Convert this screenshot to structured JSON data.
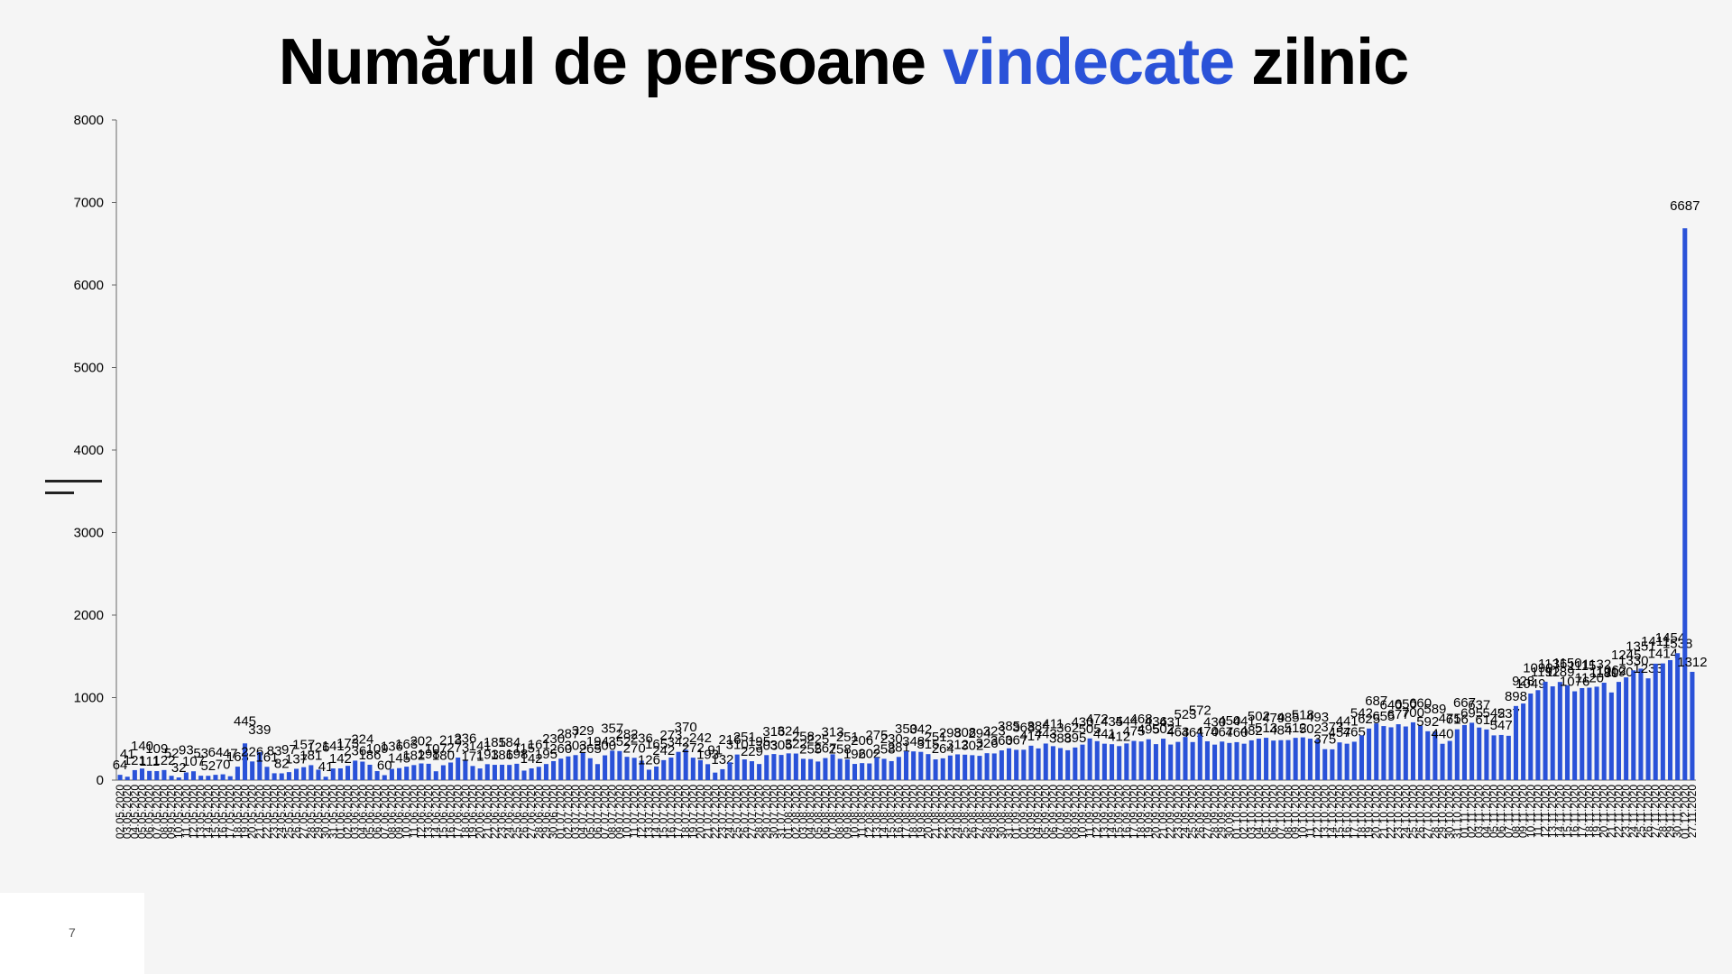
{
  "title": {
    "part1": "Numărul de persoane ",
    "highlight": "vindecate",
    "part2": " zilnic"
  },
  "page_number": "7",
  "colors": {
    "bar": "#2a52d8",
    "title_accent": "#2a52d8",
    "title": "#000000"
  },
  "chart_data": {
    "type": "bar",
    "title": "Numărul de persoane vindecate zilnic",
    "xlabel": "",
    "ylabel": "",
    "ylim": [
      0,
      8000
    ],
    "yticks": [
      0,
      1000,
      2000,
      3000,
      4000,
      5000,
      6000,
      7000,
      8000
    ],
    "grid": false,
    "legend": "none",
    "start_date": "2020-05-02",
    "end_date": "2020-11-27",
    "first_category_label": "02.05.2020",
    "last_category_label": "27.11.2020",
    "values": [
      64,
      41,
      121,
      140,
      111,
      109,
      122,
      52,
      32,
      93,
      107,
      53,
      52,
      64,
      70,
      47,
      163,
      445,
      226,
      339,
      161,
      83,
      82,
      97,
      137,
      157,
      181,
      126,
      41,
      141,
      142,
      173,
      236,
      224,
      186,
      109,
      60,
      136,
      145,
      163,
      182,
      202,
      198,
      107,
      180,
      213,
      273,
      236,
      171,
      141,
      193,
      185,
      186,
      184,
      198,
      115,
      142,
      161,
      195,
      230,
      260,
      287,
      303,
      329,
      265,
      194,
      300,
      357,
      352,
      282,
      270,
      236,
      126,
      165,
      242,
      273,
      342,
      370,
      272,
      242,
      193,
      91,
      132,
      216,
      310,
      251,
      229,
      195,
      303,
      316,
      305,
      324,
      322,
      258,
      255,
      225,
      267,
      313,
      258,
      251,
      196,
      206,
      202,
      275,
      258,
      230,
      281,
      350,
      348,
      342,
      315,
      251,
      264,
      298,
      312,
      308,
      302,
      294,
      326,
      323,
      360,
      385,
      367,
      368,
      417,
      384,
      443,
      411,
      388,
      362,
      395,
      430,
      505,
      472,
      441,
      435,
      412,
      444,
      475,
      468,
      495,
      436,
      502,
      431,
      463,
      523,
      461,
      572,
      470,
      430,
      467,
      450,
      460,
      441,
      482,
      502,
      513,
      479,
      484,
      485,
      512,
      518,
      502,
      493,
      375,
      373,
      457,
      441,
      465,
      542,
      625,
      687,
      655,
      640,
      677,
      650,
      700,
      660,
      592,
      589,
      440,
      475,
      616,
      667,
      695,
      637,
      614,
      542,
      547,
      537,
      898,
      928,
      1049,
      1090,
      1192,
      1136,
      1189,
      1150,
      1076,
      1115,
      1120,
      1132,
      1180,
      1062,
      1190,
      1245,
      1330,
      1351,
      1233,
      1411,
      1414,
      1454,
      1538,
      6687,
      1312
    ]
  }
}
